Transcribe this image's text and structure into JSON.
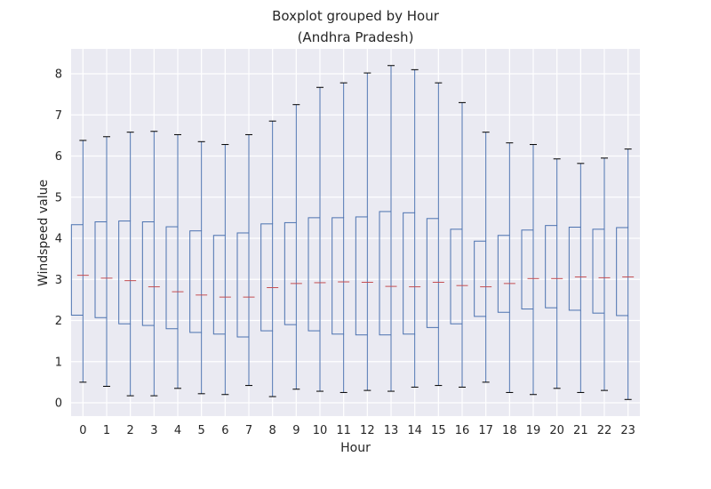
{
  "colors": {
    "background": "#eaeaf2",
    "grid": "#ffffff",
    "box": "#4c72b0",
    "median": "#c44e52",
    "whisker": "#4c72b0",
    "cap": "#000000"
  },
  "chart_data": {
    "type": "boxplot",
    "title": "Boxplot grouped by Hour",
    "subtitle": "(Andhra Pradesh)",
    "xlabel": "Hour",
    "ylabel": "Windspeed value",
    "ylim": [
      -0.3,
      8.6
    ],
    "yticks": [
      0,
      1,
      2,
      3,
      4,
      5,
      6,
      7,
      8
    ],
    "grid": true,
    "categories": [
      "0",
      "1",
      "2",
      "3",
      "4",
      "5",
      "6",
      "7",
      "8",
      "9",
      "10",
      "11",
      "12",
      "13",
      "14",
      "15",
      "16",
      "17",
      "18",
      "19",
      "20",
      "21",
      "22",
      "23"
    ],
    "boxes": [
      {
        "label": "0",
        "whislo": 0.5,
        "q1": 2.13,
        "med": 3.1,
        "q3": 4.33,
        "whishi": 6.38
      },
      {
        "label": "1",
        "whislo": 0.4,
        "q1": 2.07,
        "med": 3.03,
        "q3": 4.4,
        "whishi": 6.47
      },
      {
        "label": "2",
        "whislo": 0.17,
        "q1": 1.92,
        "med": 2.97,
        "q3": 4.42,
        "whishi": 6.58
      },
      {
        "label": "3",
        "whislo": 0.17,
        "q1": 1.88,
        "med": 2.82,
        "q3": 4.4,
        "whishi": 6.6
      },
      {
        "label": "4",
        "whislo": 0.35,
        "q1": 1.8,
        "med": 2.7,
        "q3": 4.28,
        "whishi": 6.52
      },
      {
        "label": "5",
        "whislo": 0.22,
        "q1": 1.71,
        "med": 2.62,
        "q3": 4.18,
        "whishi": 6.35
      },
      {
        "label": "6",
        "whislo": 0.2,
        "q1": 1.67,
        "med": 2.57,
        "q3": 4.07,
        "whishi": 6.28
      },
      {
        "label": "7",
        "whislo": 0.42,
        "q1": 1.6,
        "med": 2.57,
        "q3": 4.13,
        "whishi": 6.52
      },
      {
        "label": "8",
        "whislo": 0.15,
        "q1": 1.75,
        "med": 2.8,
        "q3": 4.35,
        "whishi": 6.85
      },
      {
        "label": "9",
        "whislo": 0.33,
        "q1": 1.9,
        "med": 2.9,
        "q3": 4.38,
        "whishi": 7.25
      },
      {
        "label": "10",
        "whislo": 0.28,
        "q1": 1.75,
        "med": 2.92,
        "q3": 4.5,
        "whishi": 7.67
      },
      {
        "label": "11",
        "whislo": 0.25,
        "q1": 1.67,
        "med": 2.94,
        "q3": 4.5,
        "whishi": 7.78
      },
      {
        "label": "12",
        "whislo": 0.3,
        "q1": 1.65,
        "med": 2.93,
        "q3": 4.52,
        "whishi": 8.02
      },
      {
        "label": "13",
        "whislo": 0.28,
        "q1": 1.65,
        "med": 2.83,
        "q3": 4.65,
        "whishi": 8.2
      },
      {
        "label": "14",
        "whislo": 0.38,
        "q1": 1.67,
        "med": 2.82,
        "q3": 4.62,
        "whishi": 8.1
      },
      {
        "label": "15",
        "whislo": 0.42,
        "q1": 1.83,
        "med": 2.93,
        "q3": 4.48,
        "whishi": 7.78
      },
      {
        "label": "16",
        "whislo": 0.38,
        "q1": 1.92,
        "med": 2.85,
        "q3": 4.22,
        "whishi": 7.3
      },
      {
        "label": "17",
        "whislo": 0.5,
        "q1": 2.1,
        "med": 2.82,
        "q3": 3.93,
        "whishi": 6.58
      },
      {
        "label": "18",
        "whislo": 0.25,
        "q1": 2.2,
        "med": 2.9,
        "q3": 4.07,
        "whishi": 6.32
      },
      {
        "label": "19",
        "whislo": 0.2,
        "q1": 2.28,
        "med": 3.02,
        "q3": 4.2,
        "whishi": 6.28
      },
      {
        "label": "20",
        "whislo": 0.35,
        "q1": 2.31,
        "med": 3.02,
        "q3": 4.31,
        "whishi": 5.93
      },
      {
        "label": "21",
        "whislo": 0.25,
        "q1": 2.25,
        "med": 3.06,
        "q3": 4.27,
        "whishi": 5.82
      },
      {
        "label": "22",
        "whislo": 0.3,
        "q1": 2.18,
        "med": 3.04,
        "q3": 4.22,
        "whishi": 5.95
      },
      {
        "label": "23",
        "whislo": 0.08,
        "q1": 2.12,
        "med": 3.06,
        "q3": 4.26,
        "whishi": 6.17
      }
    ]
  }
}
